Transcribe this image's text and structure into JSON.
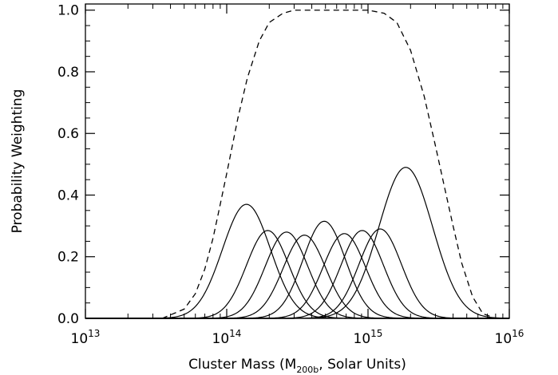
{
  "chart_data": {
    "type": "line",
    "xscale": "log",
    "xlim": [
      10000000000000.0,
      1e+16
    ],
    "ylim": [
      0.0,
      1.02
    ],
    "xlabel": {
      "prefix": "Cluster Mass (M",
      "subscript": "200b",
      "suffix": ", Solar Units)"
    },
    "ylabel": "Probability Weighting",
    "x_ticks": [
      {
        "value": 10000000000000.0,
        "base": "10",
        "exp": "13"
      },
      {
        "value": 100000000000000.0,
        "base": "10",
        "exp": "14"
      },
      {
        "value": 1000000000000000.0,
        "base": "10",
        "exp": "15"
      },
      {
        "value": 1e+16,
        "base": "10",
        "exp": "16"
      }
    ],
    "y_ticks": [
      {
        "value": 0.0,
        "label": "0.0"
      },
      {
        "value": 0.2,
        "label": "0.2"
      },
      {
        "value": 0.4,
        "label": "0.4"
      },
      {
        "value": 0.6,
        "label": "0.6"
      },
      {
        "value": 0.8,
        "label": "0.8"
      },
      {
        "value": 1.0,
        "label": "1.0"
      }
    ],
    "grid": false,
    "legend": "none",
    "envelope": {
      "style": "dashed",
      "points": [
        [
          10000000000000.0,
          0.0
        ],
        [
          35000000000000.0,
          0.0
        ],
        [
          50000000000000.0,
          0.03
        ],
        [
          60000000000000.0,
          0.08
        ],
        [
          70000000000000.0,
          0.16
        ],
        [
          80000000000000.0,
          0.26
        ],
        [
          90000000000000.0,
          0.37
        ],
        [
          100000000000000.0,
          0.47
        ],
        [
          120000000000000.0,
          0.65
        ],
        [
          140000000000000.0,
          0.78
        ],
        [
          170000000000000.0,
          0.9
        ],
        [
          200000000000000.0,
          0.96
        ],
        [
          250000000000000.0,
          0.99
        ],
        [
          300000000000000.0,
          1.0
        ],
        [
          1000000000000000.0,
          1.0
        ],
        [
          1300000000000000.0,
          0.99
        ],
        [
          1600000000000000.0,
          0.96
        ],
        [
          2000000000000000.0,
          0.87
        ],
        [
          2500000000000000.0,
          0.72
        ],
        [
          3000000000000000.0,
          0.56
        ],
        [
          3500000000000000.0,
          0.42
        ],
        [
          4000000000000000.0,
          0.3
        ],
        [
          4600000000000000.0,
          0.18
        ],
        [
          5500000000000000.0,
          0.07
        ],
        [
          6500000000000000.0,
          0.015
        ],
        [
          8000000000000000.0,
          0.0
        ],
        [
          1e+16,
          0.0
        ]
      ]
    },
    "series": [
      {
        "peak_mass": 138000000000000.0,
        "peak_value": 0.37,
        "sigma_dex": 0.17
      },
      {
        "peak_mass": 195000000000000.0,
        "peak_value": 0.285,
        "sigma_dex": 0.15
      },
      {
        "peak_mass": 265000000000000.0,
        "peak_value": 0.28,
        "sigma_dex": 0.15
      },
      {
        "peak_mass": 355000000000000.0,
        "peak_value": 0.27,
        "sigma_dex": 0.15
      },
      {
        "peak_mass": 490000000000000.0,
        "peak_value": 0.315,
        "sigma_dex": 0.15
      },
      {
        "peak_mass": 680000000000000.0,
        "peak_value": 0.275,
        "sigma_dex": 0.15
      },
      {
        "peak_mass": 910000000000000.0,
        "peak_value": 0.285,
        "sigma_dex": 0.15
      },
      {
        "peak_mass": 1220000000000000.0,
        "peak_value": 0.29,
        "sigma_dex": 0.15
      },
      {
        "peak_mass": 1850000000000000.0,
        "peak_value": 0.49,
        "sigma_dex": 0.19
      }
    ]
  }
}
